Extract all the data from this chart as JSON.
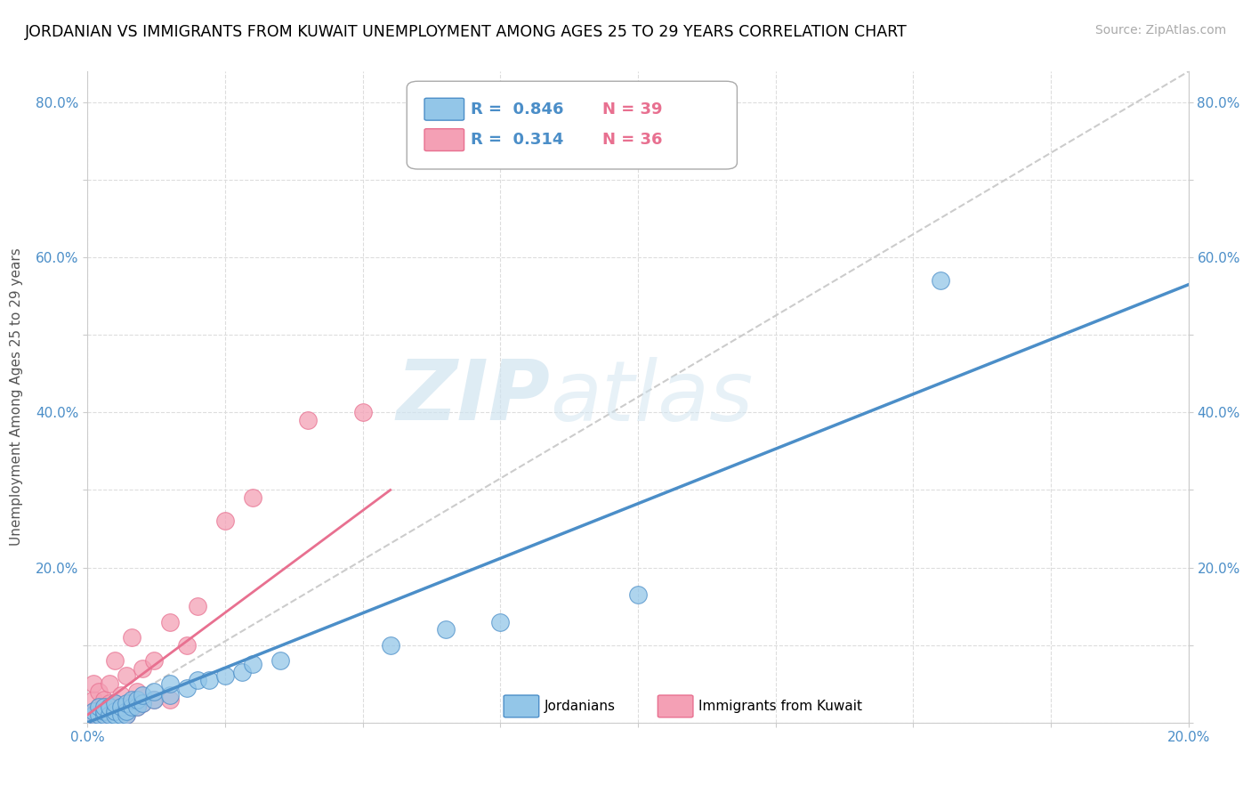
{
  "title": "JORDANIAN VS IMMIGRANTS FROM KUWAIT UNEMPLOYMENT AMONG AGES 25 TO 29 YEARS CORRELATION CHART",
  "source": "Source: ZipAtlas.com",
  "ylabel": "Unemployment Among Ages 25 to 29 years",
  "xmin": 0.0,
  "xmax": 0.2,
  "ymin": 0.0,
  "ymax": 0.84,
  "x_ticks": [
    0.0,
    0.025,
    0.05,
    0.075,
    0.1,
    0.125,
    0.15,
    0.175,
    0.2
  ],
  "y_ticks": [
    0.0,
    0.1,
    0.2,
    0.3,
    0.4,
    0.5,
    0.6,
    0.7,
    0.8
  ],
  "y_tick_labels": [
    "",
    "",
    "20.0%",
    "",
    "40.0%",
    "",
    "60.0%",
    "",
    "80.0%"
  ],
  "jordanians_r": "0.846",
  "jordanians_n": "39",
  "immigrants_r": "0.314",
  "immigrants_n": "36",
  "jordan_color": "#93c6e8",
  "immigrant_color": "#f4a0b5",
  "jordan_line_color": "#4b8ec8",
  "immigrant_line_color": "#e87090",
  "diagonal_color": "#cccccc",
  "watermark_zip": "ZIP",
  "watermark_atlas": "atlas",
  "jordanians_x": [
    0.001,
    0.001,
    0.002,
    0.002,
    0.003,
    0.003,
    0.003,
    0.004,
    0.004,
    0.005,
    0.005,
    0.005,
    0.006,
    0.006,
    0.007,
    0.007,
    0.007,
    0.008,
    0.008,
    0.009,
    0.009,
    0.01,
    0.01,
    0.012,
    0.012,
    0.015,
    0.015,
    0.018,
    0.02,
    0.022,
    0.025,
    0.028,
    0.03,
    0.035,
    0.055,
    0.065,
    0.075,
    0.1,
    0.155
  ],
  "jordanians_y": [
    0.01,
    0.015,
    0.01,
    0.02,
    0.01,
    0.015,
    0.02,
    0.01,
    0.02,
    0.01,
    0.015,
    0.025,
    0.01,
    0.02,
    0.01,
    0.015,
    0.025,
    0.02,
    0.03,
    0.02,
    0.03,
    0.025,
    0.035,
    0.03,
    0.04,
    0.035,
    0.05,
    0.045,
    0.055,
    0.055,
    0.06,
    0.065,
    0.075,
    0.08,
    0.1,
    0.12,
    0.13,
    0.165,
    0.57
  ],
  "immigrants_x": [
    0.001,
    0.001,
    0.001,
    0.001,
    0.002,
    0.002,
    0.002,
    0.003,
    0.003,
    0.003,
    0.004,
    0.004,
    0.005,
    0.005,
    0.005,
    0.006,
    0.006,
    0.007,
    0.007,
    0.007,
    0.008,
    0.008,
    0.009,
    0.009,
    0.01,
    0.01,
    0.012,
    0.012,
    0.015,
    0.015,
    0.018,
    0.02,
    0.025,
    0.03,
    0.04,
    0.05
  ],
  "immigrants_y": [
    0.01,
    0.015,
    0.03,
    0.05,
    0.01,
    0.02,
    0.04,
    0.01,
    0.02,
    0.03,
    0.025,
    0.05,
    0.015,
    0.025,
    0.08,
    0.02,
    0.035,
    0.01,
    0.02,
    0.06,
    0.025,
    0.11,
    0.02,
    0.04,
    0.025,
    0.07,
    0.03,
    0.08,
    0.03,
    0.13,
    0.1,
    0.15,
    0.26,
    0.29,
    0.39,
    0.4
  ],
  "jordan_line_x0": 0.0,
  "jordan_line_y0": 0.0,
  "jordan_line_x1": 0.2,
  "jordan_line_y1": 0.565,
  "immigrant_line_x0": 0.0,
  "immigrant_line_y0": 0.01,
  "immigrant_line_x1": 0.055,
  "immigrant_line_y1": 0.3
}
